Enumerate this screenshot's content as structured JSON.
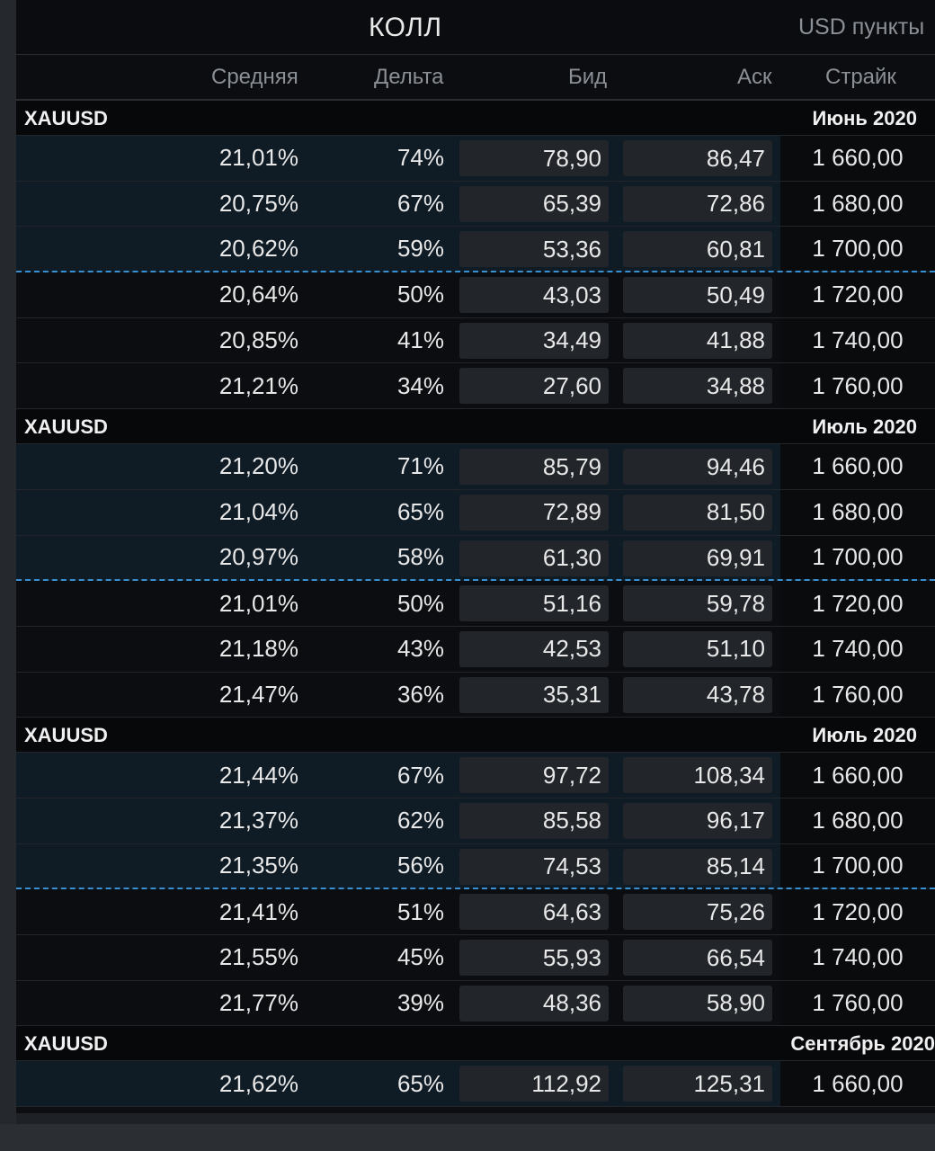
{
  "header": {
    "title": "КОЛЛ",
    "units": "USD пункты"
  },
  "columns": {
    "avg": "Средняя",
    "delta": "Дельта",
    "bid": "Бид",
    "ask": "Аск",
    "strike": "Страйк"
  },
  "groups": [
    {
      "symbol": "XAUUSD",
      "expiry": "Июнь 2020",
      "rows": [
        {
          "avg": "21,01%",
          "delta": "74%",
          "bid": "78,90",
          "ask": "86,47",
          "strike": "1 660,00",
          "moneyness": "itm"
        },
        {
          "avg": "20,75%",
          "delta": "67%",
          "bid": "65,39",
          "ask": "72,86",
          "strike": "1 680,00",
          "moneyness": "itm"
        },
        {
          "avg": "20,62%",
          "delta": "59%",
          "bid": "53,36",
          "ask": "60,81",
          "strike": "1 700,00",
          "moneyness": "itm"
        },
        {
          "avg": "20,64%",
          "delta": "50%",
          "bid": "43,03",
          "ask": "50,49",
          "strike": "1 720,00",
          "moneyness": "otm"
        },
        {
          "avg": "20,85%",
          "delta": "41%",
          "bid": "34,49",
          "ask": "41,88",
          "strike": "1 740,00",
          "moneyness": "otm"
        },
        {
          "avg": "21,21%",
          "delta": "34%",
          "bid": "27,60",
          "ask": "34,88",
          "strike": "1 760,00",
          "moneyness": "otm"
        }
      ]
    },
    {
      "symbol": "XAUUSD",
      "expiry": "Июль 2020",
      "rows": [
        {
          "avg": "21,20%",
          "delta": "71%",
          "bid": "85,79",
          "ask": "94,46",
          "strike": "1 660,00",
          "moneyness": "itm"
        },
        {
          "avg": "21,04%",
          "delta": "65%",
          "bid": "72,89",
          "ask": "81,50",
          "strike": "1 680,00",
          "moneyness": "itm"
        },
        {
          "avg": "20,97%",
          "delta": "58%",
          "bid": "61,30",
          "ask": "69,91",
          "strike": "1 700,00",
          "moneyness": "itm"
        },
        {
          "avg": "21,01%",
          "delta": "50%",
          "bid": "51,16",
          "ask": "59,78",
          "strike": "1 720,00",
          "moneyness": "otm"
        },
        {
          "avg": "21,18%",
          "delta": "43%",
          "bid": "42,53",
          "ask": "51,10",
          "strike": "1 740,00",
          "moneyness": "otm"
        },
        {
          "avg": "21,47%",
          "delta": "36%",
          "bid": "35,31",
          "ask": "43,78",
          "strike": "1 760,00",
          "moneyness": "otm"
        }
      ]
    },
    {
      "symbol": "XAUUSD",
      "expiry": "Июль 2020",
      "rows": [
        {
          "avg": "21,44%",
          "delta": "67%",
          "bid": "97,72",
          "ask": "108,34",
          "strike": "1 660,00",
          "moneyness": "itm"
        },
        {
          "avg": "21,37%",
          "delta": "62%",
          "bid": "85,58",
          "ask": "96,17",
          "strike": "1 680,00",
          "moneyness": "itm"
        },
        {
          "avg": "21,35%",
          "delta": "56%",
          "bid": "74,53",
          "ask": "85,14",
          "strike": "1 700,00",
          "moneyness": "itm"
        },
        {
          "avg": "21,41%",
          "delta": "51%",
          "bid": "64,63",
          "ask": "75,26",
          "strike": "1 720,00",
          "moneyness": "otm"
        },
        {
          "avg": "21,55%",
          "delta": "45%",
          "bid": "55,93",
          "ask": "66,54",
          "strike": "1 740,00",
          "moneyness": "otm"
        },
        {
          "avg": "21,77%",
          "delta": "39%",
          "bid": "48,36",
          "ask": "58,90",
          "strike": "1 760,00",
          "moneyness": "otm"
        }
      ]
    },
    {
      "symbol": "XAUUSD",
      "expiry": "Сентябрь 2020",
      "rows": [
        {
          "avg": "21,62%",
          "delta": "65%",
          "bid": "112,92",
          "ask": "125,31",
          "strike": "1 660,00",
          "moneyness": "itm"
        }
      ]
    }
  ]
}
